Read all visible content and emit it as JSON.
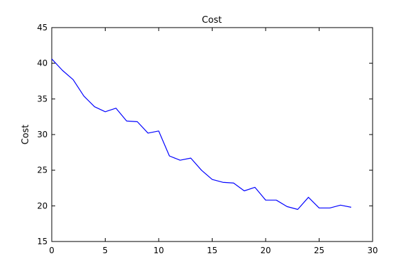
{
  "chart_data": {
    "type": "line",
    "title": "Cost",
    "xlabel": "",
    "ylabel": "Cost",
    "xlim": [
      0,
      30
    ],
    "ylim": [
      15,
      45
    ],
    "xticks": [
      0,
      5,
      10,
      15,
      20,
      25,
      30
    ],
    "yticks": [
      15,
      20,
      25,
      30,
      35,
      40,
      45
    ],
    "grid": false,
    "series": [
      {
        "color": "#0000ff",
        "x": [
          0,
          1,
          2,
          3,
          4,
          5,
          6,
          7,
          8,
          9,
          10,
          11,
          12,
          13,
          14,
          15,
          16,
          17,
          18,
          19,
          20,
          21,
          22,
          23,
          24,
          25,
          26,
          27,
          28
        ],
        "y": [
          40.6,
          39.0,
          37.7,
          35.4,
          33.9,
          33.2,
          33.7,
          31.9,
          31.8,
          30.2,
          30.5,
          27.0,
          26.4,
          26.7,
          25.0,
          23.7,
          23.3,
          23.2,
          22.1,
          22.6,
          20.8,
          20.8,
          19.9,
          19.5,
          21.2,
          19.7,
          19.7,
          20.1,
          19.8
        ]
      }
    ]
  }
}
